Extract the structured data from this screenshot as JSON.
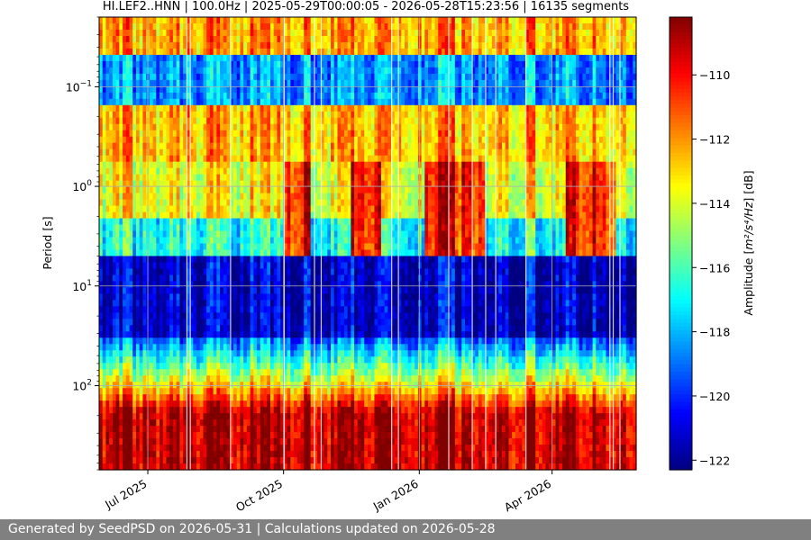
{
  "chart_data": {
    "type": "heatmap",
    "title": "HI.LEF2..HNN | 100.0Hz | 2025-05-29T00:00:05 - 2026-05-28T15:23:56 | 16135 segments",
    "ylabel": "Period [s]",
    "yscale": "log",
    "y_ticks": [
      {
        "value": 0.1,
        "base": "10",
        "exp": "−1"
      },
      {
        "value": 1,
        "base": "10",
        "exp": "0"
      },
      {
        "value": 10,
        "base": "10",
        "exp": "1"
      },
      {
        "value": 100,
        "base": "10",
        "exp": "2"
      }
    ],
    "ylim": [
      0.02,
      700
    ],
    "y_inverted": true,
    "xlim": [
      "2025-05-29",
      "2026-05-28"
    ],
    "x_ticks": [
      {
        "date": "2025-07-01",
        "label": "Jul 2025"
      },
      {
        "date": "2025-10-01",
        "label": "Oct 2025"
      },
      {
        "date": "2026-01-01",
        "label": "Jan 2026"
      },
      {
        "date": "2026-04-01",
        "label": "Apr 2026"
      }
    ],
    "colorbar": {
      "label_prefix": "Amplitude [",
      "label_math": "m²/s⁴/Hz",
      "label_suffix": "] [dB]",
      "range": [
        -122.3,
        -108.2
      ],
      "ticks": [
        -110,
        -112,
        -114,
        -116,
        -118,
        -120,
        -122
      ],
      "tick_labels": [
        "−110",
        "−112",
        "−114",
        "−116",
        "−118",
        "−120",
        "−122"
      ],
      "colormap": "jet"
    },
    "grid": true,
    "high_amplitude_periods_approx": [
      "2025-10-01 to 2025-10-20",
      "2025-11-15 to 2025-12-05",
      "2026-01-05 to 2026-02-15",
      "2026-04-10 to 2026-05-15"
    ]
  },
  "footer": {
    "text": "Generated by SeedPSD on 2026-05-31 | Calculations updated on 2026-05-28"
  }
}
